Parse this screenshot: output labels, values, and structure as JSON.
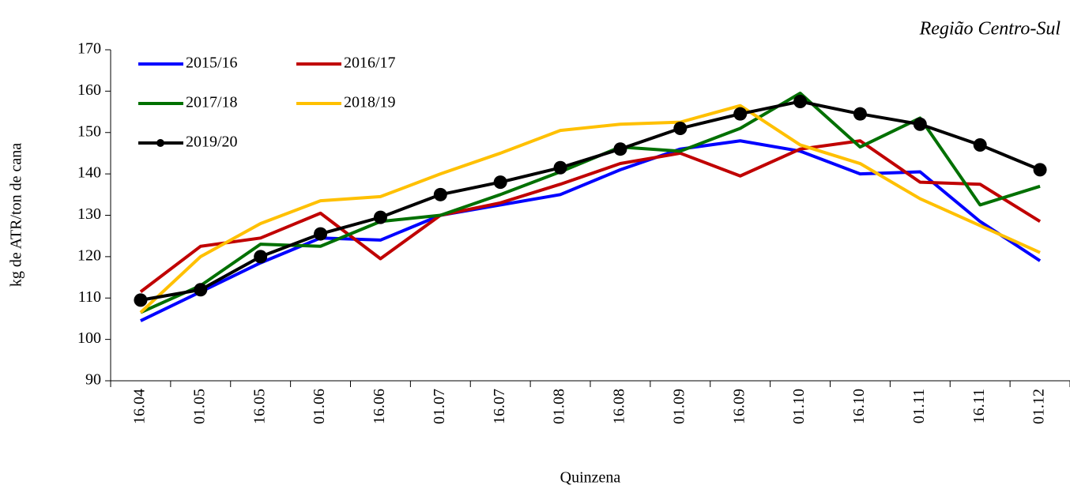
{
  "chart_data": {
    "type": "line",
    "title": "Região Centro-Sul",
    "x_label": "Quinzena",
    "y_label": "kg de ATR/ton de cana",
    "categories": [
      "16.04",
      "01.05",
      "16.05",
      "01.06",
      "16.06",
      "01.07",
      "16.07",
      "01.08",
      "16.08",
      "01.09",
      "16.09",
      "01.10",
      "16.10",
      "01.11",
      "16.11",
      "01.12"
    ],
    "ylim": [
      90,
      170
    ],
    "yticks": [
      90,
      100,
      110,
      120,
      130,
      140,
      150,
      160,
      170
    ],
    "legend": "top-left",
    "series": [
      {
        "name": "2015/16",
        "color": "#0000ff",
        "markers": false,
        "values": [
          104.5,
          111.5,
          118.5,
          124.5,
          124,
          130,
          132.5,
          135,
          141,
          146,
          148,
          145.5,
          140,
          140.5,
          128.5,
          119
        ]
      },
      {
        "name": "2016/17",
        "color": "#c00000",
        "markers": false,
        "values": [
          111.5,
          122.5,
          124.5,
          130.5,
          119.5,
          130,
          133,
          137.5,
          142.5,
          145,
          139.5,
          146,
          148,
          138,
          137.5,
          128.5
        ]
      },
      {
        "name": "2017/18",
        "color": "#007000",
        "markers": false,
        "values": [
          106.5,
          113,
          123,
          122.5,
          128.5,
          130,
          135,
          140.5,
          146.5,
          145.5,
          151,
          159.5,
          146.5,
          153.5,
          132.5,
          137
        ]
      },
      {
        "name": "2018/19",
        "color": "#ffc000",
        "markers": false,
        "values": [
          106.5,
          120,
          128,
          133.5,
          134.5,
          140,
          145,
          150.5,
          152,
          152.5,
          156.5,
          147,
          142.5,
          134,
          127.5,
          121
        ]
      },
      {
        "name": "2019/20",
        "color": "#000000",
        "markers": true,
        "values": [
          109.5,
          112,
          120,
          125.5,
          129.5,
          135,
          138,
          141.5,
          146,
          151,
          154.5,
          157.5,
          154.5,
          152,
          147,
          141
        ]
      }
    ]
  }
}
